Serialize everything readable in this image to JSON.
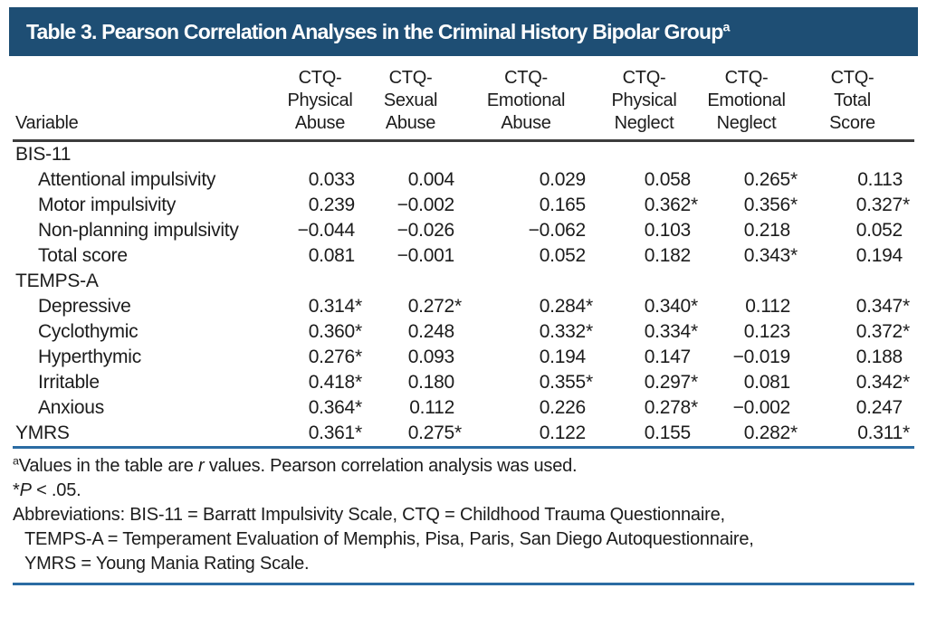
{
  "title": {
    "text": "Table 3. Pearson Correlation Analyses in the Criminal History Bipolar Group",
    "superscript": "a"
  },
  "colors": {
    "header_bar": "#1e4e74",
    "title_text": "#ffffff",
    "rule_dark": "#3d3d3d",
    "rule_blue": "#2b6ca3",
    "text": "#1c1c1c"
  },
  "table": {
    "variable_header": "Variable",
    "columns": [
      "CTQ-\nPhysical\nAbuse",
      "CTQ-\nSexual\nAbuse",
      "CTQ-\nEmotional\nAbuse",
      "CTQ-\nPhysical\nNeglect",
      "CTQ-\nEmotional\nNeglect",
      "CTQ-\nTotal\nScore"
    ],
    "rows": [
      {
        "type": "section",
        "label": "BIS-11"
      },
      {
        "type": "data",
        "indent": true,
        "label": "Attentional impulsivity",
        "values": [
          "0.033",
          "0.004",
          "0.029",
          "0.058",
          "0.265*",
          "0.113"
        ]
      },
      {
        "type": "data",
        "indent": true,
        "label": "Motor impulsivity",
        "values": [
          "0.239",
          "−0.002",
          "0.165",
          "0.362*",
          "0.356*",
          "0.327*"
        ]
      },
      {
        "type": "data",
        "indent": true,
        "label": "Non-planning impulsivity",
        "values": [
          "−0.044",
          "−0.026",
          "−0.062",
          "0.103",
          "0.218",
          "0.052"
        ]
      },
      {
        "type": "data",
        "indent": true,
        "label": "Total score",
        "values": [
          "0.081",
          "−0.001",
          "0.052",
          "0.182",
          "0.343*",
          "0.194"
        ]
      },
      {
        "type": "section",
        "label": "TEMPS-A"
      },
      {
        "type": "data",
        "indent": true,
        "label": "Depressive",
        "values": [
          "0.314*",
          "0.272*",
          "0.284*",
          "0.340*",
          "0.112",
          "0.347*"
        ]
      },
      {
        "type": "data",
        "indent": true,
        "label": "Cyclothymic",
        "values": [
          "0.360*",
          "0.248",
          "0.332*",
          "0.334*",
          "0.123",
          "0.372*"
        ]
      },
      {
        "type": "data",
        "indent": true,
        "label": "Hyperthymic",
        "values": [
          "0.276*",
          "0.093",
          "0.194",
          "0.147",
          "−0.019",
          "0.188"
        ]
      },
      {
        "type": "data",
        "indent": true,
        "label": "Irritable",
        "values": [
          "0.418*",
          "0.180",
          "0.355*",
          "0.297*",
          "0.081",
          "0.342*"
        ]
      },
      {
        "type": "data",
        "indent": true,
        "label": "Anxious",
        "values": [
          "0.364*",
          "0.112",
          "0.226",
          "0.278*",
          "−0.002",
          "0.247"
        ]
      },
      {
        "type": "data",
        "indent": false,
        "label": "YMRS",
        "values": [
          "0.361*",
          "0.275*",
          "0.122",
          "0.155",
          "0.282*",
          "0.311*"
        ]
      }
    ]
  },
  "footnotes": {
    "r_note": {
      "sup": "a",
      "pre": "Values in the table are ",
      "italic": "r",
      "post": " values. Pearson correlation analysis was used."
    },
    "p_note": {
      "pre": "*",
      "italic": "P",
      "post": " < .05."
    },
    "abbrev_lines": [
      "Abbreviations: BIS-11 = Barratt Impulsivity Scale, CTQ = Childhood Trauma Questionnaire,",
      "TEMPS-A = Temperament Evaluation of Memphis, Pisa, Paris, San Diego Autoquestionnaire,",
      "YMRS = Young Mania Rating Scale."
    ]
  }
}
